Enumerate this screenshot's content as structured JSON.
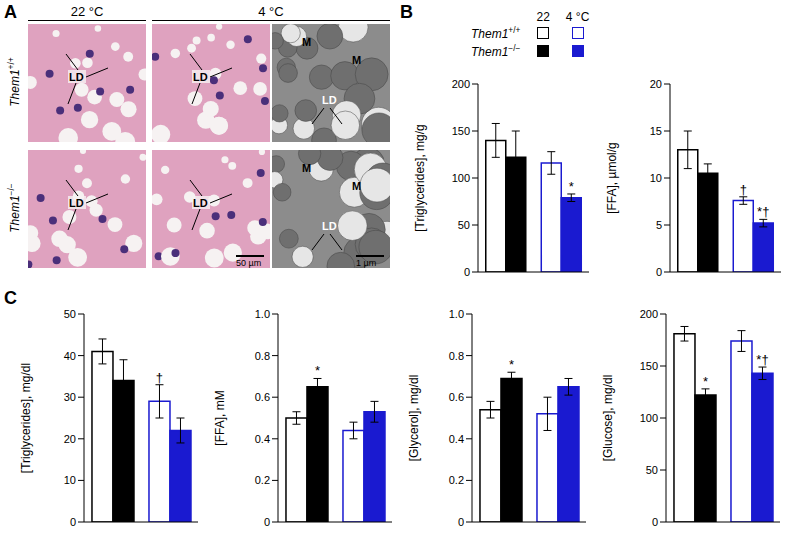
{
  "panel_labels": [
    "A",
    "B",
    "C"
  ],
  "micrographs": {
    "columns": [
      "22 °C",
      "4 °C"
    ],
    "rows": [
      "Them1+/+",
      "Them1−/−"
    ],
    "labels": [
      "LD",
      "M"
    ],
    "scale_bars": [
      "50 µm",
      "1 µm"
    ]
  },
  "legend_columns": [
    "22",
    "4 °C"
  ],
  "chart_data": [
    {
      "type": "bar",
      "panel": "B",
      "y_label": "[Triglycerides], mg/g",
      "categories": [
        null,
        null
      ],
      "ylim": [
        0,
        200
      ],
      "yticks": [
        0,
        50,
        100,
        150,
        200
      ],
      "series": [
        {
          "name": "Them1+/+",
          "marker": "open",
          "colors": [
            "#000000",
            "#1a1ad0"
          ],
          "values": [
            140,
            116
          ],
          "error": [
            18,
            12
          ],
          "annotations": [
            null,
            null
          ]
        },
        {
          "name": "Them1−/−",
          "marker": "filled",
          "colors": [
            "#000000",
            "#1a1ad0"
          ],
          "values": [
            122,
            79
          ],
          "error": [
            28,
            4
          ],
          "annotations": [
            null,
            "*"
          ]
        }
      ]
    },
    {
      "type": "bar",
      "panel": "B",
      "y_label": "[FFA], µmol/g",
      "categories": [
        null,
        null
      ],
      "ylim": [
        0,
        20
      ],
      "yticks": [
        0,
        5,
        10,
        15,
        20
      ],
      "series": [
        {
          "name": "Them1+/+",
          "marker": "open",
          "colors": [
            "#000000",
            "#1a1ad0"
          ],
          "values": [
            13,
            7.6
          ],
          "error": [
            2,
            0.4
          ],
          "annotations": [
            null,
            "†"
          ]
        },
        {
          "name": "Them1−/−",
          "marker": "filled",
          "colors": [
            "#000000",
            "#1a1ad0"
          ],
          "values": [
            10.5,
            5.2
          ],
          "error": [
            1,
            0.4
          ],
          "annotations": [
            null,
            "*†"
          ]
        }
      ]
    },
    {
      "type": "bar",
      "panel": "C",
      "y_label": "[Triglycerides], mg/dl",
      "categories": [
        null,
        null
      ],
      "ylim": [
        0,
        50
      ],
      "yticks": [
        0,
        10,
        20,
        30,
        40,
        50
      ],
      "series": [
        {
          "name": "Them1+/+",
          "marker": "open",
          "colors": [
            "#000000",
            "#1a1ad0"
          ],
          "values": [
            41,
            29
          ],
          "error": [
            3,
            4
          ],
          "annotations": [
            null,
            "†"
          ]
        },
        {
          "name": "Them1−/−",
          "marker": "filled",
          "colors": [
            "#000000",
            "#1a1ad0"
          ],
          "values": [
            34,
            22
          ],
          "error": [
            5,
            3
          ],
          "annotations": [
            null,
            null
          ]
        }
      ]
    },
    {
      "type": "bar",
      "panel": "C",
      "y_label": "[FFA], mM",
      "categories": [
        null,
        null
      ],
      "ylim": [
        0,
        1
      ],
      "yticks": [
        0,
        0.2,
        0.4,
        0.6,
        0.8,
        {
          "value": 1,
          "label": "1.0"
        }
      ],
      "series": [
        {
          "name": "Them1+/+",
          "marker": "open",
          "colors": [
            "#000000",
            "#1a1ad0"
          ],
          "values": [
            0.5,
            0.44
          ],
          "error": [
            0.03,
            0.04
          ],
          "annotations": [
            null,
            null
          ]
        },
        {
          "name": "Them1−/−",
          "marker": "filled",
          "colors": [
            "#000000",
            "#1a1ad0"
          ],
          "values": [
            0.65,
            0.53
          ],
          "error": [
            0.04,
            0.05
          ],
          "annotations": [
            "*",
            null
          ]
        }
      ]
    },
    {
      "type": "bar",
      "panel": "C",
      "y_label": "[Glycerol], mg/dl",
      "categories": [
        null,
        null
      ],
      "ylim": [
        0,
        1
      ],
      "yticks": [
        0,
        0.2,
        0.4,
        0.6,
        0.8,
        {
          "value": 1,
          "label": "1.0"
        }
      ],
      "series": [
        {
          "name": "Them1+/+",
          "marker": "open",
          "colors": [
            "#000000",
            "#1a1ad0"
          ],
          "values": [
            0.54,
            0.52
          ],
          "error": [
            0.04,
            0.08
          ],
          "annotations": [
            null,
            null
          ]
        },
        {
          "name": "Them1−/−",
          "marker": "filled",
          "colors": [
            "#000000",
            "#1a1ad0"
          ],
          "values": [
            0.69,
            0.65
          ],
          "error": [
            0.03,
            0.04
          ],
          "annotations": [
            "*",
            null
          ]
        }
      ]
    },
    {
      "type": "bar",
      "panel": "C",
      "y_label": "[Glucose], mg/dl",
      "categories": [
        null,
        null
      ],
      "ylim": [
        0,
        200
      ],
      "yticks": [
        0,
        50,
        100,
        150,
        200
      ],
      "series": [
        {
          "name": "Them1+/+",
          "marker": "open",
          "colors": [
            "#000000",
            "#1a1ad0"
          ],
          "values": [
            181,
            174
          ],
          "error": [
            7,
            10
          ],
          "annotations": [
            null,
            null
          ]
        },
        {
          "name": "Them1−/−",
          "marker": "filled",
          "colors": [
            "#000000",
            "#1a1ad0"
          ],
          "values": [
            122,
            143
          ],
          "error": [
            6,
            6
          ],
          "annotations": [
            "*",
            "*†"
          ]
        }
      ]
    }
  ]
}
